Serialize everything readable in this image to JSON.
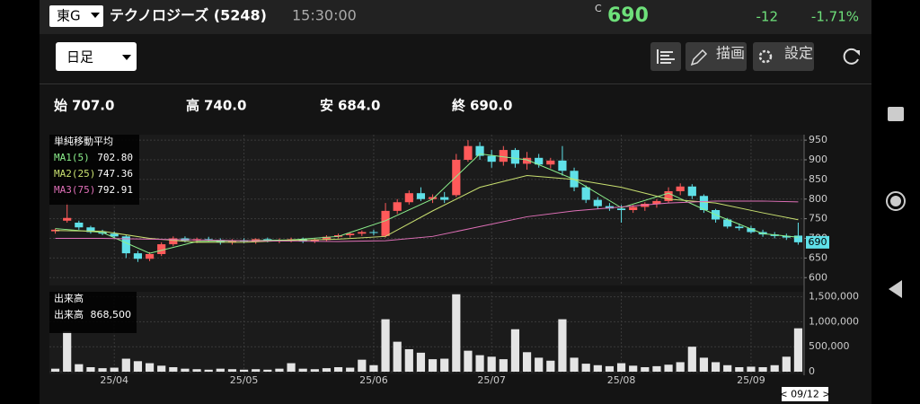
{
  "header": {
    "market": "東G",
    "name": "テクノロジーズ (5248)",
    "time": "15:30:00",
    "price_flag": "C",
    "price": "690",
    "change": "-12",
    "change_pct": "-1.71%"
  },
  "toolbar": {
    "period": "日足",
    "draw": "描画",
    "settings": "設定"
  },
  "ohlc": {
    "open_label": "始",
    "open": "707.0",
    "high_label": "高",
    "high": "740.0",
    "low_label": "安",
    "low": "684.0",
    "close_label": "終",
    "close": "690.0"
  },
  "date_nav": "< 09/12 >",
  "chart_data": [
    {
      "type": "candlestick",
      "legend_title": "単純移動平均",
      "up_color": "#ff5a5a",
      "down_color": "#5fe0e8",
      "categories": [
        null,
        null,
        null,
        null,
        null,
        "25/04",
        null,
        null,
        null,
        null,
        null,
        null,
        null,
        null,
        null,
        null,
        "25/05",
        null,
        null,
        null,
        null,
        null,
        null,
        null,
        null,
        null,
        null,
        "25/06",
        null,
        null,
        null,
        null,
        null,
        null,
        null,
        null,
        null,
        "25/07",
        null,
        null,
        null,
        null,
        null,
        null,
        null,
        null,
        null,
        null,
        "25/08",
        null,
        null,
        null,
        null,
        null,
        null,
        null,
        null,
        null,
        null,
        "25/09",
        null,
        null,
        null,
        null
      ],
      "open": [
        718,
        745,
        740,
        728,
        716,
        712,
        705,
        662,
        648,
        660,
        685,
        700,
        694,
        698,
        696,
        690,
        695,
        692,
        698,
        694,
        696,
        698,
        692,
        696,
        704,
        708,
        712,
        716,
        706,
        770,
        792,
        815,
        800,
        805,
        810,
        900,
        935,
        910,
        895,
        925,
        890,
        905,
        888,
        898,
        872,
        830,
        798,
        782,
        776,
        772,
        780,
        788,
        795,
        820,
        832,
        808,
        772,
        748,
        730,
        726,
        716,
        710,
        706,
        707
      ],
      "high": [
        725,
        790,
        745,
        732,
        722,
        718,
        708,
        668,
        665,
        690,
        705,
        705,
        702,
        704,
        700,
        698,
        700,
        700,
        702,
        700,
        702,
        702,
        700,
        708,
        712,
        716,
        720,
        722,
        790,
        800,
        822,
        830,
        812,
        818,
        915,
        950,
        945,
        925,
        935,
        930,
        920,
        915,
        905,
        935,
        880,
        835,
        805,
        790,
        785,
        785,
        792,
        800,
        830,
        840,
        838,
        812,
        775,
        752,
        738,
        732,
        722,
        716,
        712,
        740
      ],
      "low": [
        712,
        740,
        722,
        712,
        708,
        700,
        650,
        640,
        642,
        655,
        680,
        690,
        688,
        692,
        684,
        684,
        688,
        686,
        690,
        688,
        690,
        688,
        688,
        692,
        700,
        702,
        706,
        708,
        702,
        762,
        786,
        795,
        790,
        790,
        805,
        895,
        900,
        880,
        885,
        880,
        875,
        880,
        878,
        860,
        820,
        790,
        775,
        770,
        740,
        765,
        770,
        778,
        790,
        810,
        800,
        765,
        740,
        725,
        720,
        712,
        704,
        700,
        696,
        684
      ],
      "close": [
        722,
        752,
        728,
        716,
        712,
        705,
        662,
        648,
        660,
        685,
        700,
        694,
        698,
        696,
        690,
        695,
        692,
        698,
        694,
        696,
        698,
        692,
        696,
        704,
        708,
        712,
        716,
        714,
        770,
        792,
        815,
        800,
        805,
        798,
        900,
        935,
        910,
        895,
        925,
        890,
        905,
        888,
        898,
        872,
        830,
        798,
        782,
        776,
        772,
        780,
        788,
        795,
        820,
        832,
        808,
        772,
        748,
        730,
        726,
        716,
        710,
        706,
        702,
        690
      ],
      "ylim": [
        580,
        964
      ],
      "yticks": [
        600,
        650,
        700,
        750,
        800,
        850,
        900,
        950
      ],
      "grid": true,
      "series": [
        {
          "name": "MA1(5)",
          "color": "#8cf08c",
          "last_label": "702.80",
          "x": [
            0,
            4,
            8,
            12,
            16,
            20,
            24,
            28,
            32,
            36,
            40,
            44,
            48,
            52,
            56,
            60,
            63
          ],
          "values": [
            725,
            715,
            662,
            692,
            694,
            696,
            705,
            745,
            800,
            915,
            900,
            850,
            778,
            815,
            760,
            712,
            702.8
          ]
        },
        {
          "name": "MA2(25)",
          "color": "#c9e070",
          "last_label": "747.36",
          "x": [
            0,
            4,
            8,
            12,
            16,
            20,
            24,
            28,
            32,
            36,
            40,
            44,
            48,
            52,
            56,
            60,
            63
          ],
          "values": [
            720,
            718,
            700,
            690,
            690,
            695,
            698,
            705,
            770,
            830,
            860,
            850,
            830,
            800,
            790,
            765,
            747.36
          ]
        },
        {
          "name": "MA3(75)",
          "color": "#e070b8",
          "last_label": "792.91",
          "x": [
            0,
            4,
            8,
            12,
            16,
            20,
            24,
            28,
            32,
            36,
            40,
            44,
            48,
            52,
            56,
            60,
            63
          ],
          "values": [
            700,
            700,
            698,
            696,
            694,
            693,
            692,
            694,
            705,
            730,
            755,
            770,
            780,
            790,
            795,
            795,
            792.91
          ]
        }
      ]
    },
    {
      "type": "bar",
      "title": "出来高",
      "legend_label": "出来高",
      "legend_value": "868,500",
      "color": "#e4e4e4",
      "values": [
        60000,
        800000,
        150000,
        90000,
        70000,
        80000,
        260000,
        210000,
        170000,
        120000,
        90000,
        60000,
        50000,
        40000,
        60000,
        50000,
        40000,
        50000,
        40000,
        60000,
        170000,
        60000,
        50000,
        70000,
        90000,
        80000,
        240000,
        130000,
        1050000,
        600000,
        450000,
        380000,
        250000,
        260000,
        1550000,
        420000,
        330000,
        300000,
        250000,
        850000,
        390000,
        280000,
        220000,
        1050000,
        280000,
        160000,
        130000,
        110000,
        170000,
        120000,
        90000,
        110000,
        140000,
        190000,
        500000,
        280000,
        190000,
        130000,
        90000,
        100000,
        90000,
        130000,
        300000,
        868500
      ],
      "ylim": [
        0,
        1600000
      ],
      "yticks": [
        0,
        {
          "value": 500000,
          "label": "500,000"
        },
        {
          "value": 1000000,
          "label": "1,000,000"
        },
        {
          "value": 1500000,
          "label": "1,500,000"
        }
      ]
    }
  ]
}
